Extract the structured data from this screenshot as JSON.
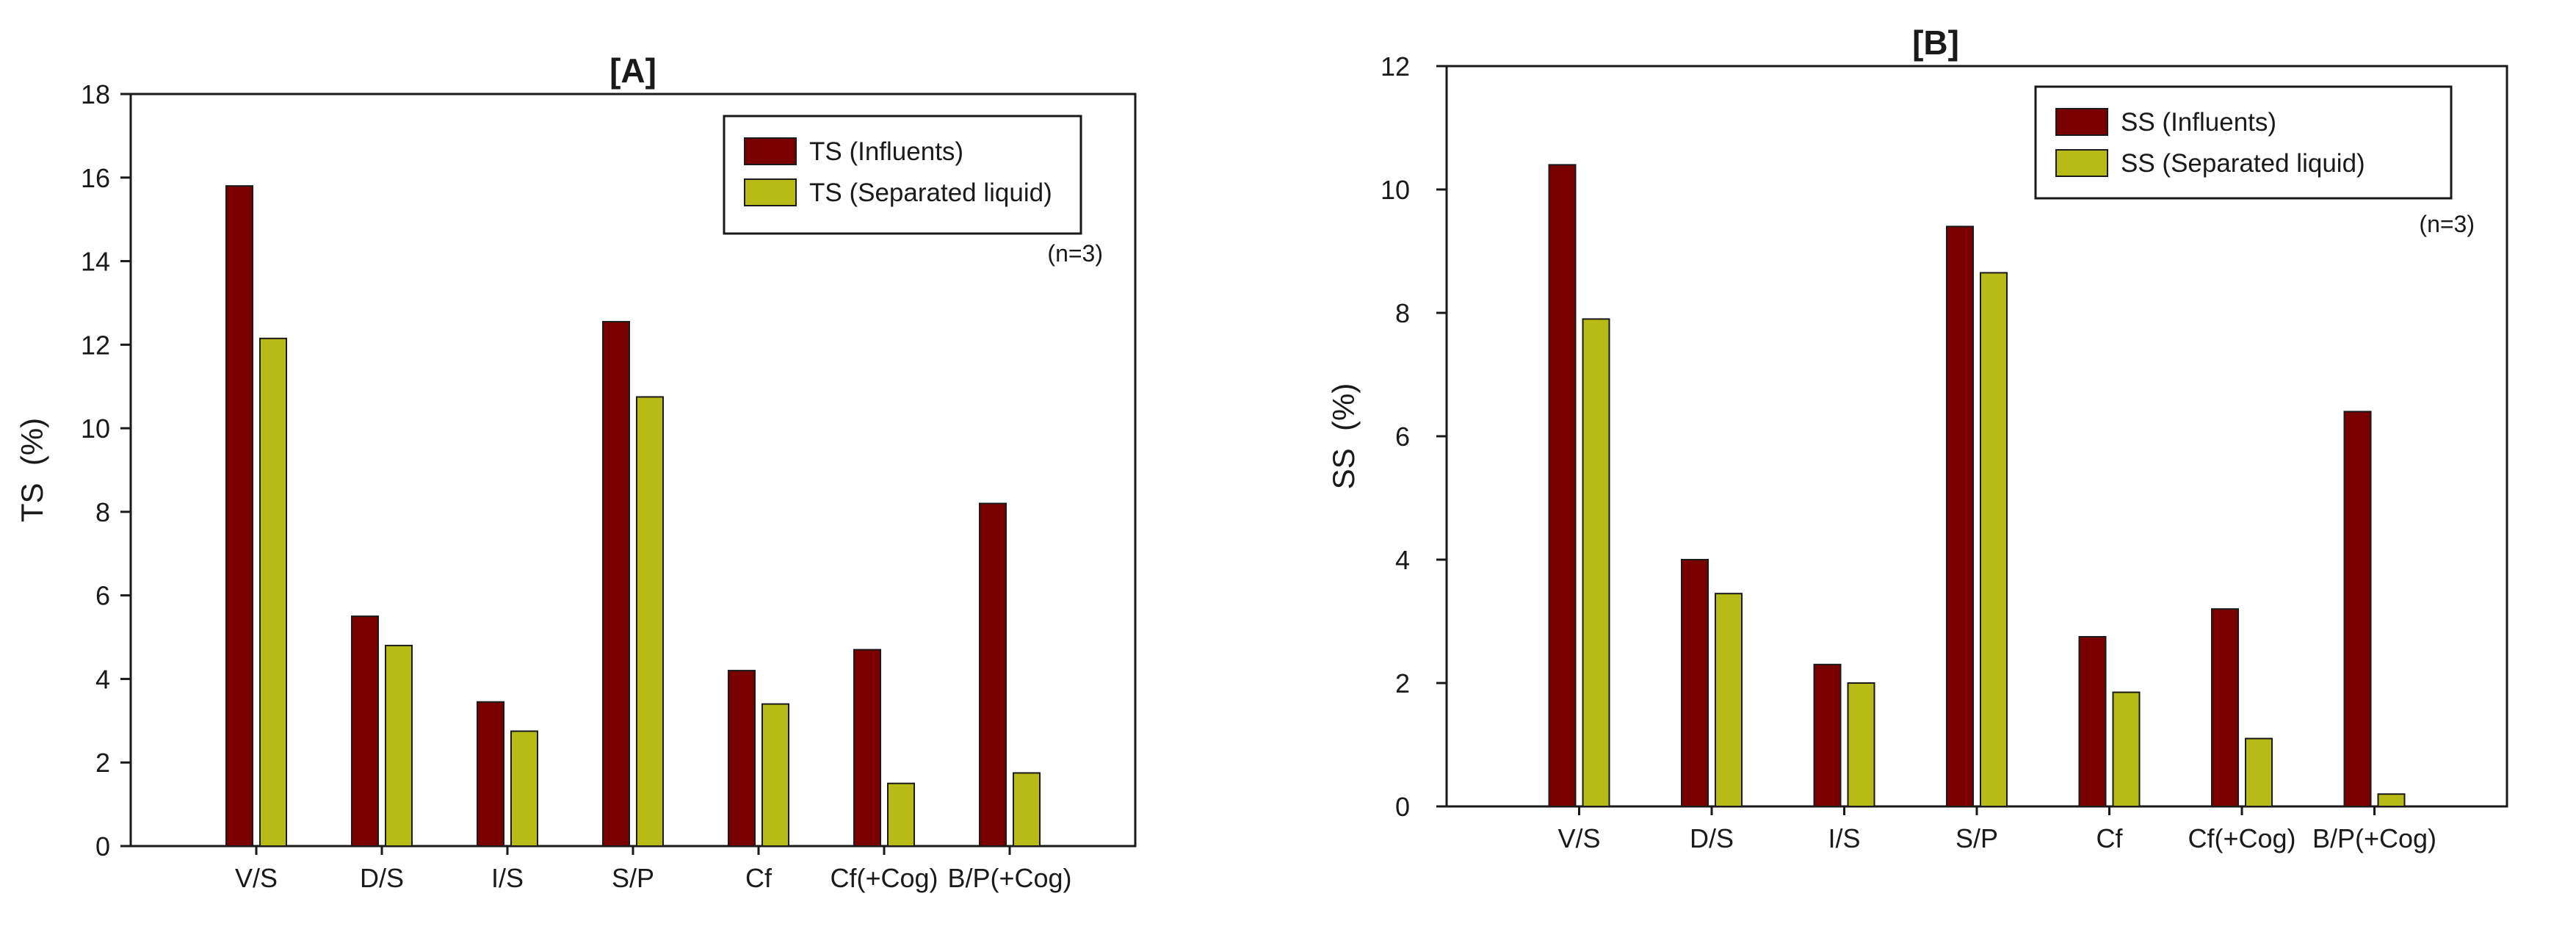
{
  "chart_data": [
    {
      "type": "bar",
      "title": "[A]",
      "xlabel": "",
      "ylabel": "TS  (%)",
      "ylim": [
        0,
        18
      ],
      "yticks": [
        0,
        2,
        4,
        6,
        8,
        10,
        12,
        14,
        16,
        18
      ],
      "categories": [
        "V/S",
        "D/S",
        "I/S",
        "S/P",
        "Cf",
        "Cf(+Cog)",
        "B/P(+Cog)"
      ],
      "series": [
        {
          "name": "TS (Influents)",
          "color": "#7a0000",
          "values": [
            15.8,
            5.5,
            3.45,
            12.55,
            4.2,
            4.7,
            8.2
          ]
        },
        {
          "name": "TS (Separated liquid)",
          "color": "#b8bb16",
          "values": [
            12.15,
            4.8,
            2.75,
            10.75,
            3.4,
            1.5,
            1.75
          ]
        }
      ],
      "annotation": "(n=3)",
      "legend_position": "top-right",
      "grid": false
    },
    {
      "type": "bar",
      "title": "[B]",
      "xlabel": "",
      "ylabel": "SS  (%)",
      "ylim": [
        0,
        12
      ],
      "yticks": [
        0,
        2,
        4,
        6,
        8,
        10,
        12
      ],
      "categories": [
        "V/S",
        "D/S",
        "I/S",
        "S/P",
        "Cf",
        "Cf(+Cog)",
        "B/P(+Cog)"
      ],
      "series": [
        {
          "name": "SS (Influents)",
          "color": "#7a0000",
          "values": [
            10.4,
            4.0,
            2.3,
            9.4,
            2.75,
            3.2,
            6.4
          ]
        },
        {
          "name": "SS (Separated liquid)",
          "color": "#b8bb16",
          "values": [
            7.9,
            3.45,
            2.0,
            8.65,
            1.85,
            1.1,
            0.2
          ]
        }
      ],
      "annotation": "(n=3)",
      "legend_position": "top-right",
      "grid": false
    }
  ]
}
